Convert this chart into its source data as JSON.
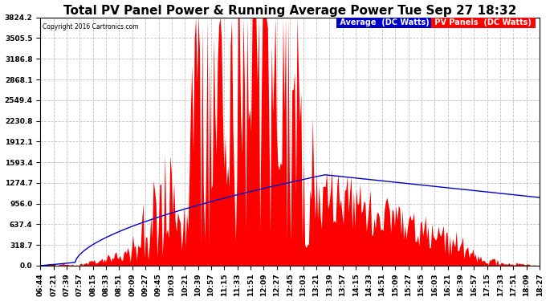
{
  "title": "Total PV Panel Power & Running Average Power Tue Sep 27 18:32",
  "copyright": "Copyright 2016 Cartronics.com",
  "legend_avg_label": "Average  (DC Watts)",
  "legend_pv_label": "PV Panels  (DC Watts)",
  "ylabel_values": [
    0.0,
    318.7,
    637.4,
    956.0,
    1274.7,
    1593.4,
    1912.1,
    2230.8,
    2549.4,
    2868.1,
    3186.8,
    3505.5,
    3824.2
  ],
  "ymax": 3824.2,
  "bg_color": "#ffffff",
  "plot_bg_color": "#ffffff",
  "grid_color": "#bbbbbb",
  "title_fontsize": 11,
  "tick_fontsize": 6.5,
  "avg_line_color": "#0000cc",
  "pv_fill_color": "#ff0000",
  "pv_edge_color": "#ff0000",
  "x_tick_labels": [
    "06:44",
    "07:21",
    "07:39",
    "07:57",
    "08:15",
    "08:33",
    "08:51",
    "09:09",
    "09:27",
    "09:45",
    "10:03",
    "10:21",
    "10:39",
    "10:57",
    "11:15",
    "11:33",
    "11:51",
    "12:09",
    "12:27",
    "12:45",
    "13:03",
    "13:21",
    "13:39",
    "13:57",
    "14:15",
    "14:33",
    "14:51",
    "15:09",
    "15:27",
    "15:45",
    "16:03",
    "16:21",
    "16:39",
    "16:57",
    "17:15",
    "17:33",
    "17:51",
    "18:09",
    "18:27"
  ],
  "n_points": 390
}
